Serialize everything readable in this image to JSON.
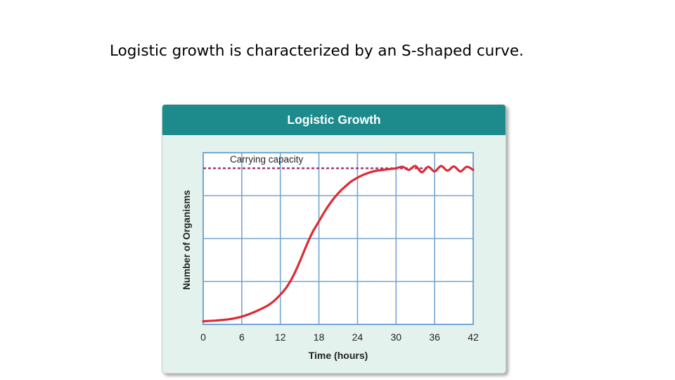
{
  "slide": {
    "title": "Logistic growth is characterized by an S-shaped curve."
  },
  "chart_data": {
    "type": "line",
    "title": "Logistic Growth",
    "xlabel": "Time (hours)",
    "ylabel": "Number of Organisms",
    "xlim": [
      0,
      42
    ],
    "ylim": [
      0,
      1.1
    ],
    "x_ticks": [
      0,
      6,
      12,
      18,
      24,
      30,
      36,
      42
    ],
    "grid": true,
    "colors": {
      "curve": "#dc2b36",
      "carrying_capacity": "#a0367e",
      "grid": "#74a6d4",
      "header": "#1d8a8c"
    },
    "reference_line": {
      "label": "Carrying capacity",
      "y": 1.0
    },
    "series": [
      {
        "x": [
          0,
          2,
          4,
          6,
          8,
          10,
          11,
          12,
          13,
          14,
          15,
          16,
          17,
          18,
          19,
          20,
          21,
          22,
          23,
          24,
          25,
          26,
          27,
          28,
          29,
          30,
          31,
          32,
          33,
          34,
          35,
          36,
          37,
          38,
          39,
          40,
          41,
          42
        ],
        "y": [
          0.02,
          0.025,
          0.033,
          0.05,
          0.08,
          0.12,
          0.15,
          0.19,
          0.24,
          0.31,
          0.4,
          0.5,
          0.59,
          0.66,
          0.73,
          0.79,
          0.84,
          0.88,
          0.915,
          0.94,
          0.96,
          0.975,
          0.985,
          0.99,
          0.995,
          1.0,
          1.01,
          0.99,
          1.015,
          0.975,
          1.01,
          0.98,
          1.015,
          0.985,
          1.012,
          0.98,
          1.01,
          0.99
        ]
      }
    ]
  }
}
